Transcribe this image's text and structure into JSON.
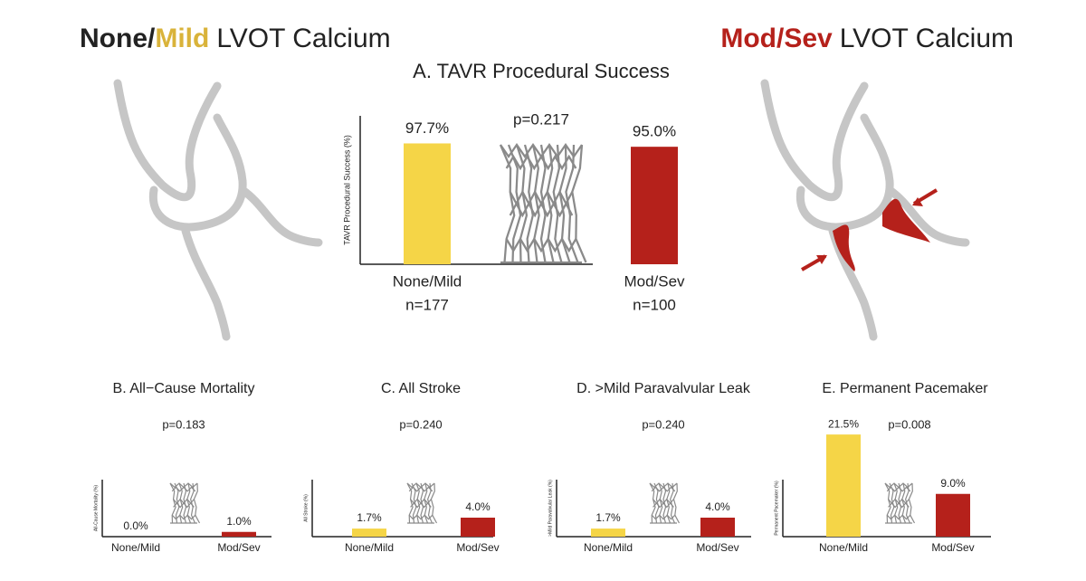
{
  "header": {
    "left_parts": [
      "None/",
      "Mild",
      "LVOT Calcium"
    ],
    "right_parts": [
      "Mod/Sev",
      "LVOT Calcium"
    ]
  },
  "chart_data": [
    {
      "type": "bar",
      "title": "A. TAVR Procedural Success",
      "ylabel": "TAVR Procedural Success (%)",
      "categories": [
        "None/Mild",
        "Mod/Sev"
      ],
      "category_notes": [
        "n=177",
        "n=100"
      ],
      "values": [
        97.7,
        95.0
      ],
      "value_labels": [
        "97.7%",
        "95.0%"
      ],
      "colors": [
        "#f5d547",
        "#b5211b"
      ],
      "annotation": "p=0.217",
      "ylim": [
        0,
        120
      ]
    },
    {
      "type": "bar",
      "title": "B. All−Cause Mortality",
      "ylabel": "All-Cause Mortality (%)",
      "categories": [
        "None/Mild",
        "Mod/Sev"
      ],
      "values": [
        0.0,
        1.0
      ],
      "value_labels": [
        "0.0%",
        "1.0%"
      ],
      "colors": [
        "#f5d547",
        "#b5211b"
      ],
      "annotation": "p=0.183",
      "ylim": [
        0,
        12
      ]
    },
    {
      "type": "bar",
      "title": "C. All Stroke",
      "ylabel": "All Stroke (%)",
      "categories": [
        "None/Mild",
        "Mod/Sev"
      ],
      "values": [
        1.7,
        4.0
      ],
      "value_labels": [
        "1.7%",
        "4.0%"
      ],
      "colors": [
        "#f5d547",
        "#b5211b"
      ],
      "annotation": "p=0.240",
      "ylim": [
        0,
        12
      ]
    },
    {
      "type": "bar",
      "title": "D. >Mild Paravalvular Leak",
      "ylabel": ">Mild Paravalvular Leak (%)",
      "categories": [
        "None/Mild",
        "Mod/Sev"
      ],
      "values": [
        1.7,
        4.0
      ],
      "value_labels": [
        "1.7%",
        "4.0%"
      ],
      "colors": [
        "#f5d547",
        "#b5211b"
      ],
      "annotation": "p=0.240",
      "ylim": [
        0,
        12
      ]
    },
    {
      "type": "bar",
      "title": "E. Permanent Pacemaker",
      "ylabel": "Permanent Pacemaker (%)",
      "categories": [
        "None/Mild",
        "Mod/Sev"
      ],
      "values": [
        21.5,
        9.0
      ],
      "value_labels": [
        "21.5%",
        "9.0%"
      ],
      "colors": [
        "#f5d547",
        "#b5211b"
      ],
      "annotation": "p=0.008",
      "ylim": [
        0,
        12
      ]
    }
  ]
}
